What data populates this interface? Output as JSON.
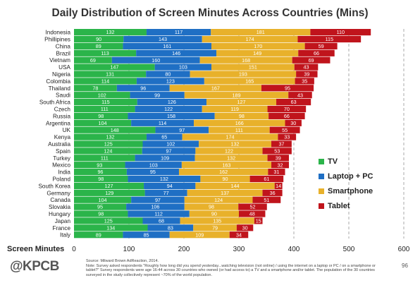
{
  "title": "Daily Distribution of Screen Minutes Across Countries (Mins)",
  "brand": "@KPCB",
  "page_number": "96",
  "source_line": "Source: Milward Brown AdReaction, 2014.",
  "note": "Note: Survey asked respondents \"Roughly how long did you spend yesterday...watching television (not online) / using the internet on a laptop or PC / on a smartphone or tablet?\" Survey respondents were age 16-44 across 30 countries who owned (or had access to) a TV and a smartphone and/or tablet. The population of the 30 countries surveyed in the study collectively represent ~70% of the world population.",
  "colors": {
    "tv": "#2bb44a",
    "laptop": "#1f6fc4",
    "smartphone": "#e8b12b",
    "tablet": "#c0141c",
    "gridline": "#aaaaaa"
  },
  "chart_data": {
    "type": "bar",
    "orientation": "horizontal",
    "stacked": true,
    "title": "Daily Distribution of Screen Minutes Across Countries (Mins)",
    "xlabel": "Screen Minutes",
    "ylabel": "",
    "xlim": [
      0,
      600
    ],
    "xticks": [
      0,
      100,
      200,
      300,
      400,
      500,
      600
    ],
    "grid": "dashed vertical",
    "legend_position": "right",
    "categories": [
      "Indonesia",
      "Phillipines",
      "China",
      "Brazil",
      "Vietnam",
      "USA",
      "Nigeria",
      "Colombia",
      "Thailand",
      "Saudi",
      "South Africa",
      "Czech",
      "Russia",
      "Argentina",
      "UK",
      "Kenya",
      "Australia",
      "Spain",
      "Turkey",
      "Mexico",
      "India",
      "Poland",
      "South Korea",
      "Germany",
      "Canada",
      "Slovakia",
      "Hungary",
      "Japan",
      "France",
      "Italy"
    ],
    "series": [
      {
        "name": "TV",
        "values": [
          132,
          90,
          89,
          113,
          69,
          147,
          131,
          114,
          78,
          102,
          115,
          111,
          98,
          104,
          148,
          132,
          125,
          124,
          111,
          93,
          96,
          98,
          127,
          129,
          104,
          95,
          98,
          125,
          134,
          89
        ]
      },
      {
        "name": "Laptop + PC",
        "values": [
          117,
          143,
          161,
          146,
          160,
          103,
          80,
          123,
          96,
          99,
          126,
          122,
          158,
          114,
          97,
          65,
          102,
          97,
          109,
          103,
          95,
          132,
          94,
          77,
          97,
          106,
          112,
          68,
          83,
          85
        ]
      },
      {
        "name": "Smartphone",
        "values": [
          181,
          174,
          170,
          149,
          168,
          151,
          193,
          165,
          167,
          189,
          127,
          119,
          98,
          166,
          111,
          174,
          132,
          122,
          132,
          163,
          162,
          90,
          144,
          137,
          124,
          98,
          90,
          135,
          79,
          109
        ]
      },
      {
        "name": "Tablet",
        "values": [
          110,
          115,
          59,
          66,
          69,
          43,
          39,
          35,
          95,
          43,
          63,
          70,
          66,
          30,
          55,
          33,
          37,
          53,
          39,
          32,
          31,
          61,
          14,
          36,
          51,
          52,
          48,
          15,
          30,
          34
        ]
      }
    ]
  }
}
